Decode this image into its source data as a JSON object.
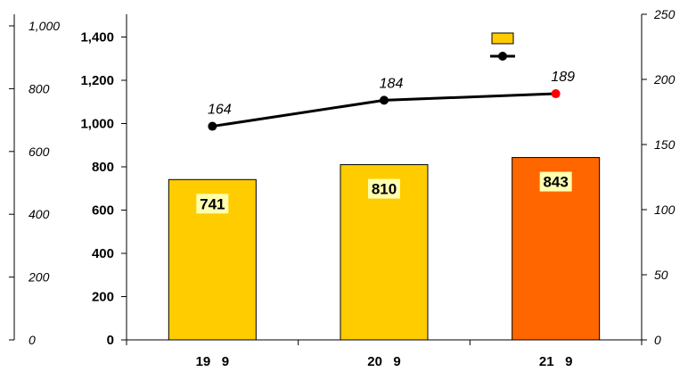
{
  "chart_data": {
    "type": "bar",
    "categories": [
      "19   9",
      "20   9",
      "21   9"
    ],
    "series": [
      {
        "type": "bar",
        "values": [
          741,
          810,
          843
        ],
        "colors": [
          "#FFCC00",
          "#FFCC00",
          "#FF6600"
        ],
        "label_bg": "#FFFFB0"
      },
      {
        "type": "line",
        "axis": "right",
        "values": [
          164,
          184,
          189
        ],
        "color": "#000000",
        "marker_colors": [
          "#000000",
          "#000000",
          "#FF0000"
        ]
      }
    ],
    "axes": {
      "y_left": {
        "min": 0,
        "max": 1500,
        "ticks": [
          0,
          200,
          400,
          600,
          800,
          1000,
          1200,
          1400
        ],
        "tick_labels": [
          "0",
          "200",
          "400",
          "600",
          "800",
          "1,000",
          "1,200",
          "1,400"
        ]
      },
      "y_outer_left": {
        "min": 0,
        "max": 1000,
        "ticks": [
          0,
          200,
          400,
          600,
          800,
          1000
        ],
        "tick_labels": [
          "0",
          "200",
          "400",
          "600",
          "800",
          "1,000"
        ]
      },
      "y_right": {
        "min": 0,
        "max": 250,
        "ticks": [
          0,
          50,
          100,
          150,
          200,
          250
        ],
        "tick_labels": [
          "0",
          "50",
          "100",
          "150",
          "200",
          "250"
        ]
      }
    },
    "legend": {
      "placement": "top-right",
      "bar_swatch_color": "#FFCC00",
      "line_swatch_color": "#000000"
    },
    "grid": false
  }
}
